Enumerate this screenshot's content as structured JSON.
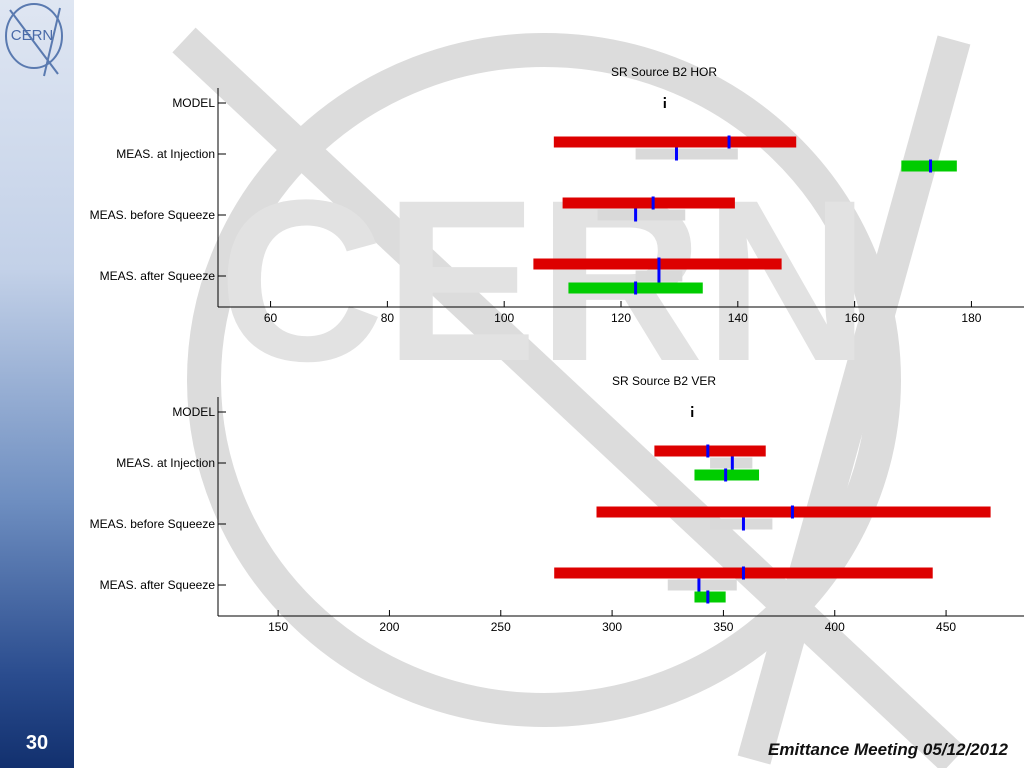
{
  "slide": {
    "number": "30",
    "footer": "Emittance Meeting 05/12/2012",
    "logo_text": "CERN",
    "watermark_text": "CERN"
  },
  "colors": {
    "red": "#dd0000",
    "green": "#00cc00",
    "gray": "#d9d9d9",
    "blue": "#0000ff"
  },
  "chart_data": [
    {
      "type": "range-bar",
      "title": "SR Source B2 HOR",
      "categories": [
        "MODEL",
        "MEAS. at Injection",
        "MEAS. before Squeeze",
        "MEAS. after Squeeze"
      ],
      "xticks": [
        60,
        80,
        100,
        120,
        140,
        160,
        180
      ],
      "xlim": [
        51,
        189
      ],
      "grid": false,
      "model_marker": 127.5,
      "bars": [
        {
          "category": 1,
          "offset": -1,
          "color": "red",
          "range": [
            108.5,
            150.0
          ],
          "marker": 138.5
        },
        {
          "category": 1,
          "offset": 0,
          "color": "gray",
          "range": [
            122.5,
            140.0
          ],
          "marker": 129.5
        },
        {
          "category": 1,
          "offset": 1,
          "color": "green",
          "range": [
            168.0,
            177.5
          ],
          "marker": 173.0
        },
        {
          "category": 2,
          "offset": -1,
          "color": "red",
          "range": [
            110.0,
            139.5
          ],
          "marker": 125.5
        },
        {
          "category": 2,
          "offset": 0,
          "color": "gray",
          "range": [
            116.0,
            131.0
          ],
          "marker": 122.5
        },
        {
          "category": 3,
          "offset": -1,
          "color": "red",
          "range": [
            105.0,
            147.5
          ],
          "marker": 126.5
        },
        {
          "category": 3,
          "offset": 0,
          "color": "gray",
          "range": [
            122.5,
            130.5
          ],
          "marker": 126.5
        },
        {
          "category": 3,
          "offset": 1,
          "color": "green",
          "range": [
            111.0,
            134.0
          ],
          "marker": 122.5
        }
      ]
    },
    {
      "type": "range-bar",
      "title": "SR Source B2 VER",
      "categories": [
        "MODEL",
        "MEAS. at Injection",
        "MEAS. before Squeeze",
        "MEAS. after Squeeze"
      ],
      "xticks": [
        150,
        200,
        250,
        300,
        350,
        400,
        450
      ],
      "xlim": [
        123,
        485
      ],
      "grid": false,
      "model_marker": 336,
      "bars": [
        {
          "category": 1,
          "offset": -1,
          "color": "red",
          "range": [
            319,
            369
          ],
          "marker": 343
        },
        {
          "category": 1,
          "offset": 0,
          "color": "gray",
          "range": [
            344,
            363
          ],
          "marker": 354
        },
        {
          "category": 1,
          "offset": 1,
          "color": "green",
          "range": [
            337,
            366
          ],
          "marker": 351
        },
        {
          "category": 2,
          "offset": -1,
          "color": "red",
          "range": [
            293,
            470
          ],
          "marker": 381
        },
        {
          "category": 2,
          "offset": 0,
          "color": "gray",
          "range": [
            344,
            372
          ],
          "marker": 359
        },
        {
          "category": 3,
          "offset": -1,
          "color": "red",
          "range": [
            274,
            444
          ],
          "marker": 359
        },
        {
          "category": 3,
          "offset": 0,
          "color": "gray",
          "range": [
            325,
            356
          ],
          "marker": 339
        },
        {
          "category": 3,
          "offset": 1,
          "color": "green",
          "range": [
            337,
            351
          ],
          "marker": 343
        }
      ]
    }
  ]
}
